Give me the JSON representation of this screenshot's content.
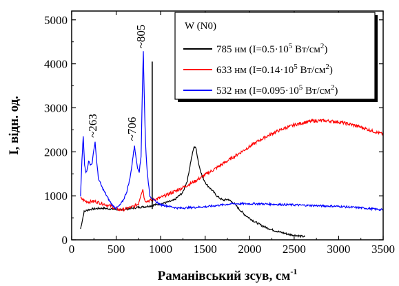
{
  "chart_data": {
    "type": "line",
    "xlabel": "Раманівський зсув, см",
    "xlabel_sup": "-1",
    "ylabel": "I, відн. од.",
    "xlim": [
      0,
      3500
    ],
    "ylim": [
      0,
      5200
    ],
    "xticks": [
      0,
      500,
      1000,
      1500,
      2000,
      2500,
      3000,
      3500
    ],
    "yticks": [
      0,
      1000,
      2000,
      3000,
      4000,
      5000
    ],
    "grid": false,
    "legend": {
      "title": "W (N0)",
      "position": "top-right"
    },
    "series": [
      {
        "name": "785 нм",
        "legend_parts": [
          "785 нм (I=0.5·10",
          "5",
          " Вт/см",
          "2",
          ")"
        ],
        "color": "#000000",
        "x": [
          100,
          140,
          180,
          230,
          280,
          350,
          450,
          550,
          650,
          750,
          850,
          950,
          1050,
          1150,
          1250,
          1300,
          1340,
          1370,
          1385,
          1400,
          1430,
          1470,
          1520,
          1580,
          1640,
          1700,
          1760,
          1800,
          1830,
          1880,
          1950,
          2050,
          2150,
          2250,
          2350,
          2450,
          2550,
          2620
        ],
        "y": [
          250,
          640,
          680,
          700,
          710,
          720,
          700,
          680,
          710,
          740,
          760,
          800,
          840,
          900,
          1080,
          1350,
          1800,
          2080,
          2120,
          2050,
          1700,
          1420,
          1250,
          1120,
          980,
          900,
          920,
          860,
          820,
          700,
          560,
          420,
          310,
          230,
          170,
          120,
          90,
          70
        ]
      },
      {
        "name": "633 нм",
        "legend_parts": [
          "633 нм (I=0.14·10",
          "5",
          " Вт/см",
          "2",
          ")"
        ],
        "color": "#ff0000",
        "x": [
          100,
          150,
          200,
          250,
          300,
          350,
          400,
          450,
          500,
          550,
          600,
          650,
          700,
          750,
          780,
          800,
          820,
          850,
          900,
          1000,
          1100,
          1200,
          1300,
          1400,
          1500,
          1600,
          1700,
          1800,
          1900,
          2000,
          2100,
          2200,
          2300,
          2400,
          2500,
          2600,
          2700,
          2800,
          2900,
          3000,
          3100,
          3200,
          3300,
          3400,
          3500
        ],
        "y": [
          950,
          880,
          860,
          880,
          850,
          820,
          790,
          760,
          700,
          680,
          700,
          730,
          760,
          820,
          1050,
          1150,
          900,
          880,
          900,
          960,
          1050,
          1140,
          1240,
          1350,
          1480,
          1600,
          1730,
          1860,
          1990,
          2120,
          2250,
          2360,
          2460,
          2540,
          2610,
          2660,
          2700,
          2710,
          2700,
          2680,
          2640,
          2590,
          2530,
          2460,
          2400
        ]
      },
      {
        "name": "532 нм",
        "legend_parts": [
          "532 нм (I=0.095·10",
          "5",
          " Вт/см",
          "2",
          ")"
        ],
        "color": "#0000ff",
        "x": [
          100,
          115,
          130,
          145,
          160,
          175,
          190,
          210,
          230,
          250,
          263,
          280,
          300,
          340,
          380,
          420,
          460,
          500,
          540,
          580,
          620,
          660,
          690,
          706,
          720,
          740,
          760,
          780,
          795,
          805,
          815,
          830,
          850,
          880,
          920,
          1000,
          1200,
          1500,
          1800,
          2100,
          2400,
          2700,
          3000,
          3300,
          3500
        ],
        "y": [
          1000,
          1800,
          2350,
          1700,
          1550,
          1600,
          1800,
          1700,
          1750,
          2050,
          2230,
          1800,
          1400,
          1200,
          1050,
          900,
          780,
          720,
          780,
          900,
          1100,
          1450,
          1900,
          2150,
          1900,
          1650,
          1550,
          1900,
          3500,
          4280,
          3300,
          2200,
          1500,
          1000,
          900,
          800,
          720,
          750,
          820,
          820,
          800,
          780,
          760,
          720,
          680
        ]
      }
    ],
    "annotations": [
      {
        "text": "~263",
        "x": 263,
        "y": 2320
      },
      {
        "text": "~706",
        "x": 706,
        "y": 2250
      },
      {
        "text": "~805",
        "x": 805,
        "y": 4350
      }
    ],
    "marker_line": {
      "x": 905,
      "y0": 700,
      "y1": 4050
    }
  }
}
